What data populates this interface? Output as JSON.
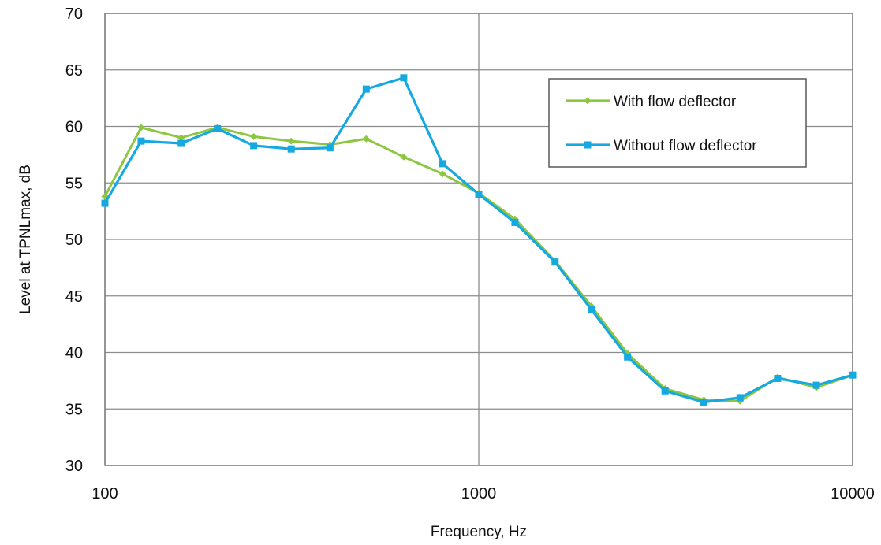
{
  "chart_data": {
    "type": "line",
    "xlabel": "Frequency, Hz",
    "ylabel": "Level at TPNLmax, dB",
    "x_scale": "log",
    "xlim": [
      100,
      10000
    ],
    "ylim": [
      30,
      70
    ],
    "x_ticks": [
      100,
      1000,
      10000
    ],
    "y_ticks": [
      30,
      35,
      40,
      45,
      50,
      55,
      60,
      65,
      70
    ],
    "x_tick_labels": [
      "100",
      "1000",
      "10000"
    ],
    "y_tick_labels": [
      "30",
      "35",
      "40",
      "45",
      "50",
      "55",
      "60",
      "65",
      "70"
    ],
    "grid": true,
    "legend_position": "top-right",
    "x": [
      100,
      125,
      160,
      200,
      250,
      315,
      400,
      500,
      630,
      800,
      1000,
      1250,
      1600,
      2000,
      2500,
      3150,
      4000,
      5000,
      6300,
      8000,
      10000
    ],
    "series": [
      {
        "name": "With flow deflector",
        "color": "#8dc63f",
        "marker": "diamond",
        "values": [
          53.8,
          59.9,
          59.0,
          59.9,
          59.1,
          58.7,
          58.4,
          58.9,
          57.3,
          55.8,
          54.1,
          51.8,
          48.1,
          44.1,
          39.9,
          36.8,
          35.8,
          35.7,
          37.8,
          36.9,
          38.0
        ]
      },
      {
        "name": "Without flow deflector",
        "color": "#16a9e1",
        "marker": "square",
        "values": [
          53.2,
          58.7,
          58.5,
          59.8,
          58.3,
          58.0,
          58.1,
          63.3,
          64.3,
          56.7,
          54.0,
          51.5,
          48.0,
          43.8,
          39.6,
          36.6,
          35.6,
          36.0,
          37.7,
          37.1,
          38.0
        ]
      }
    ]
  }
}
